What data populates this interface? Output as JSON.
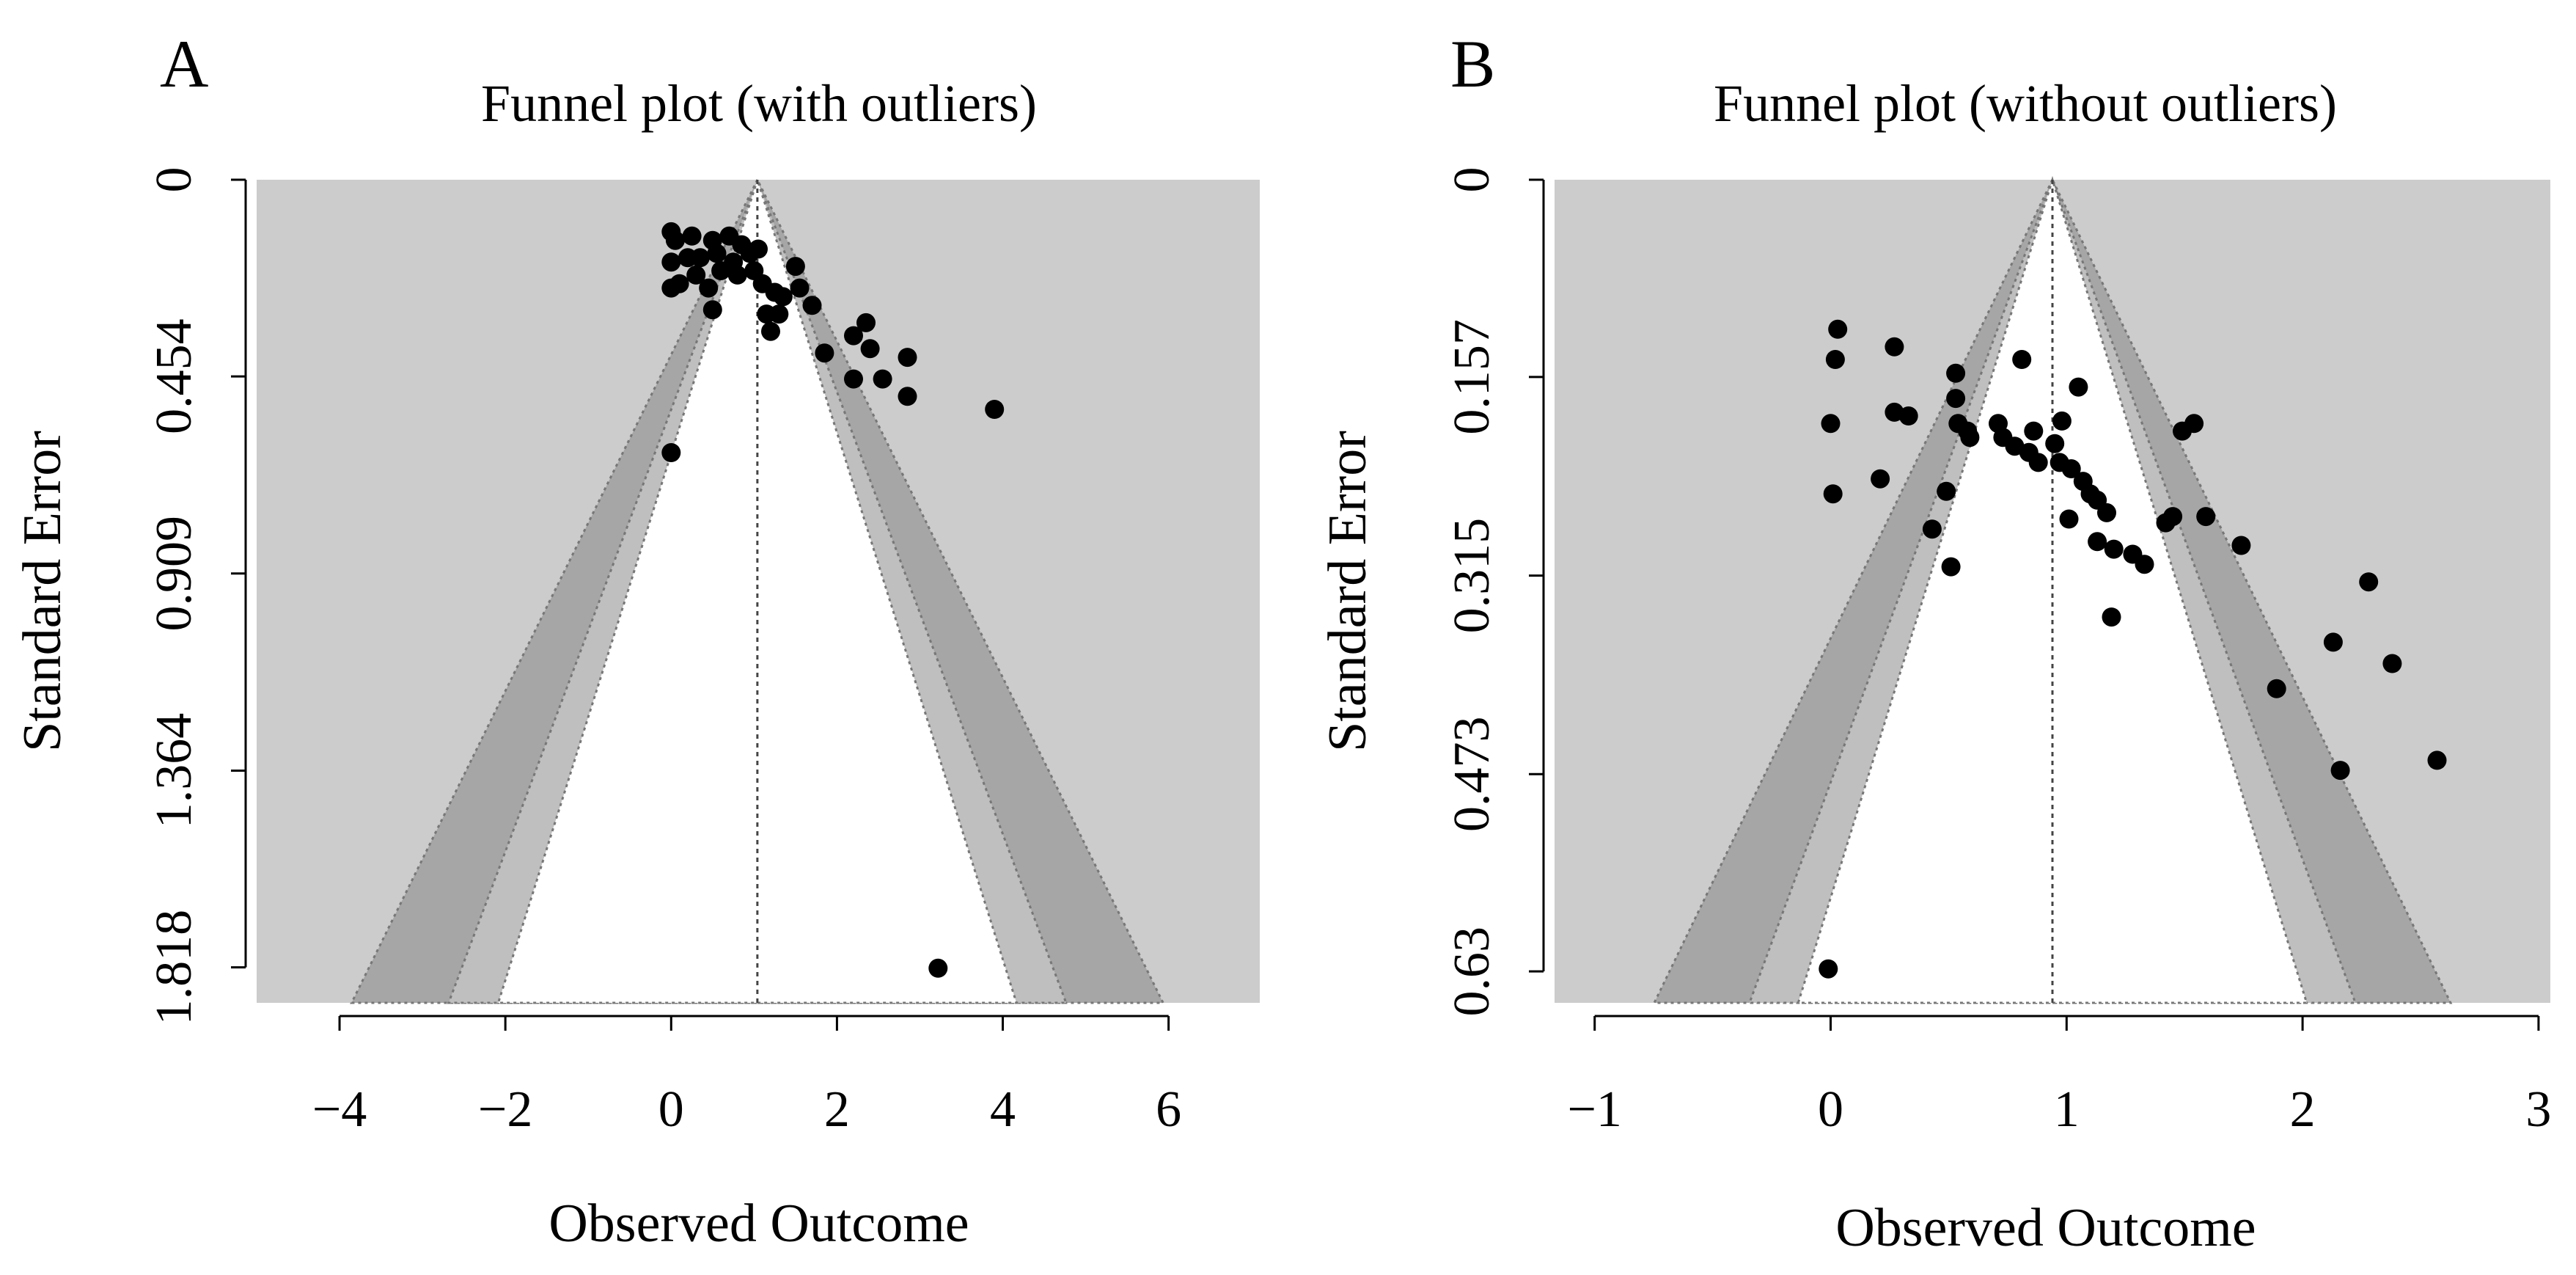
{
  "chart_data": [
    {
      "type": "scatter",
      "plot_kind": "funnel",
      "panel_label": "A",
      "title": "Funnel plot (with outliers)",
      "xlabel": "Observed Outcome",
      "ylabel": "Standard Error",
      "xlim": [
        -5,
        7.1
      ],
      "ylim": [
        0,
        1.9
      ],
      "xticks": [
        -4,
        -2,
        0,
        2,
        4,
        6
      ],
      "xtick_labels": [
        "−4",
        "−2",
        "0",
        "2",
        "4",
        "6"
      ],
      "yticks": [
        0,
        0.454,
        0.909,
        1.364,
        1.818
      ],
      "ytick_labels": [
        "0",
        "0.454",
        "0.909",
        "1.364",
        "1.818"
      ],
      "center_estimate": 1.04,
      "contour_z": [
        1.645,
        1.96,
        2.576
      ],
      "points": [
        {
          "x": 0.0,
          "y": 0.12
        },
        {
          "x": 0.05,
          "y": 0.14
        },
        {
          "x": 0.25,
          "y": 0.13
        },
        {
          "x": 0.5,
          "y": 0.14
        },
        {
          "x": 0.7,
          "y": 0.13
        },
        {
          "x": 0.85,
          "y": 0.15
        },
        {
          "x": 0.2,
          "y": 0.18
        },
        {
          "x": 0.35,
          "y": 0.18
        },
        {
          "x": 0.55,
          "y": 0.17
        },
        {
          "x": 0.75,
          "y": 0.19
        },
        {
          "x": 0.95,
          "y": 0.17
        },
        {
          "x": 1.05,
          "y": 0.16
        },
        {
          "x": 0.0,
          "y": 0.19
        },
        {
          "x": 0.1,
          "y": 0.24
        },
        {
          "x": 0.3,
          "y": 0.22
        },
        {
          "x": 0.45,
          "y": 0.25
        },
        {
          "x": 0.6,
          "y": 0.21
        },
        {
          "x": 0.8,
          "y": 0.22
        },
        {
          "x": 1.0,
          "y": 0.21
        },
        {
          "x": 1.1,
          "y": 0.24
        },
        {
          "x": 1.25,
          "y": 0.26
        },
        {
          "x": 1.35,
          "y": 0.27
        },
        {
          "x": 1.5,
          "y": 0.2
        },
        {
          "x": 1.55,
          "y": 0.25
        },
        {
          "x": 1.7,
          "y": 0.29
        },
        {
          "x": 0.0,
          "y": 0.25
        },
        {
          "x": 0.5,
          "y": 0.3
        },
        {
          "x": 1.15,
          "y": 0.31
        },
        {
          "x": 1.3,
          "y": 0.31
        },
        {
          "x": 1.2,
          "y": 0.35
        },
        {
          "x": 2.2,
          "y": 0.36
        },
        {
          "x": 2.35,
          "y": 0.33
        },
        {
          "x": 1.85,
          "y": 0.4
        },
        {
          "x": 2.4,
          "y": 0.39
        },
        {
          "x": 2.85,
          "y": 0.41
        },
        {
          "x": 2.2,
          "y": 0.46
        },
        {
          "x": 2.55,
          "y": 0.46
        },
        {
          "x": 2.85,
          "y": 0.5
        },
        {
          "x": 3.9,
          "y": 0.53
        },
        {
          "x": 0.0,
          "y": 0.63
        },
        {
          "x": 3.22,
          "y": 1.82
        }
      ]
    },
    {
      "type": "scatter",
      "plot_kind": "funnel",
      "panel_label": "B",
      "title": "Funnel plot (without outliers)",
      "xlabel": "Observed Outcome",
      "ylabel": "Standard Error",
      "xlim": [
        -1.17,
        3.05
      ],
      "ylim": [
        0,
        0.655
      ],
      "xticks": [
        -1,
        0,
        1,
        2,
        3
      ],
      "xtick_labels": [
        "−1",
        "0",
        "1",
        "2",
        "3"
      ],
      "yticks": [
        0,
        0.157,
        0.315,
        0.473,
        0.63
      ],
      "ytick_labels": [
        "0",
        "0.157",
        "0.315",
        "0.473",
        "0.63"
      ],
      "center_estimate": 0.94,
      "contour_z": [
        1.645,
        1.96,
        2.576
      ],
      "points": [
        {
          "x": 0.03,
          "y": 0.119
        },
        {
          "x": 0.02,
          "y": 0.143
        },
        {
          "x": 0.27,
          "y": 0.133
        },
        {
          "x": 0.81,
          "y": 0.143
        },
        {
          "x": 0.0,
          "y": 0.194
        },
        {
          "x": 0.01,
          "y": 0.25
        },
        {
          "x": 0.21,
          "y": 0.238
        },
        {
          "x": 0.27,
          "y": 0.185
        },
        {
          "x": 0.33,
          "y": 0.188
        },
        {
          "x": 0.53,
          "y": 0.154
        },
        {
          "x": 0.53,
          "y": 0.174
        },
        {
          "x": 0.54,
          "y": 0.194
        },
        {
          "x": 0.58,
          "y": 0.2
        },
        {
          "x": 0.59,
          "y": 0.205
        },
        {
          "x": 0.49,
          "y": 0.248
        },
        {
          "x": 0.43,
          "y": 0.278
        },
        {
          "x": 0.51,
          "y": 0.308
        },
        {
          "x": 0.71,
          "y": 0.194
        },
        {
          "x": 0.73,
          "y": 0.205
        },
        {
          "x": 0.78,
          "y": 0.212
        },
        {
          "x": 0.84,
          "y": 0.217
        },
        {
          "x": 0.86,
          "y": 0.2
        },
        {
          "x": 0.88,
          "y": 0.225
        },
        {
          "x": 0.95,
          "y": 0.21
        },
        {
          "x": 0.97,
          "y": 0.225
        },
        {
          "x": 1.02,
          "y": 0.23
        },
        {
          "x": 1.05,
          "y": 0.165
        },
        {
          "x": 0.98,
          "y": 0.192
        },
        {
          "x": 1.07,
          "y": 0.24
        },
        {
          "x": 1.1,
          "y": 0.25
        },
        {
          "x": 1.13,
          "y": 0.255
        },
        {
          "x": 1.17,
          "y": 0.265
        },
        {
          "x": 1.01,
          "y": 0.27
        },
        {
          "x": 1.13,
          "y": 0.288
        },
        {
          "x": 1.2,
          "y": 0.294
        },
        {
          "x": 1.28,
          "y": 0.298
        },
        {
          "x": 1.33,
          "y": 0.306
        },
        {
          "x": 1.42,
          "y": 0.273
        },
        {
          "x": 1.45,
          "y": 0.268
        },
        {
          "x": 1.49,
          "y": 0.2
        },
        {
          "x": 1.54,
          "y": 0.194
        },
        {
          "x": 1.59,
          "y": 0.268
        },
        {
          "x": 1.74,
          "y": 0.291
        },
        {
          "x": 1.19,
          "y": 0.348
        },
        {
          "x": 2.28,
          "y": 0.32
        },
        {
          "x": 2.13,
          "y": 0.368
        },
        {
          "x": 2.38,
          "y": 0.385
        },
        {
          "x": 1.89,
          "y": 0.405
        },
        {
          "x": 2.16,
          "y": 0.47
        },
        {
          "x": 2.57,
          "y": 0.462
        },
        {
          "x": -0.01,
          "y": 0.628
        }
      ]
    }
  ]
}
